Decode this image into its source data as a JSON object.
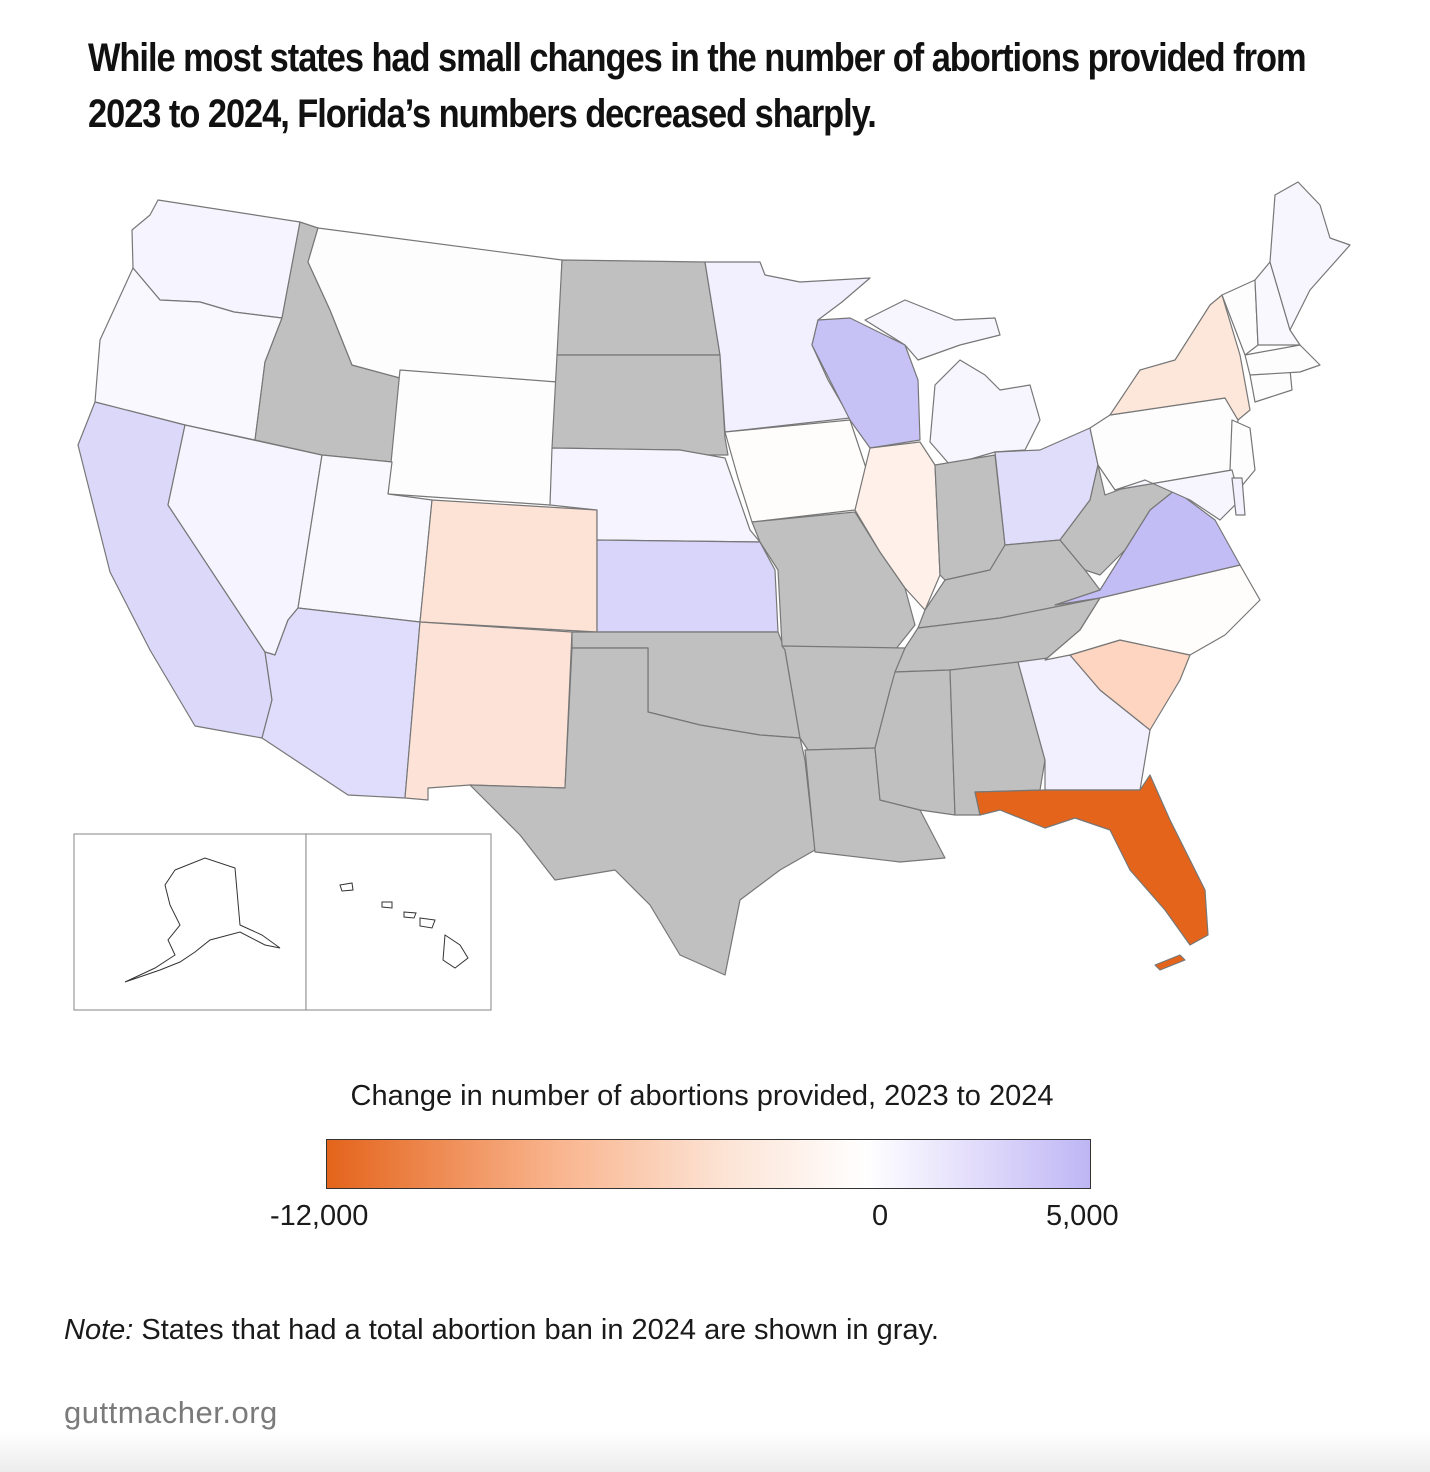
{
  "title": "While most states had small changes in the number of abortions provided from 2023 to 2024, Florida’s numbers decreased sharply.",
  "legend": {
    "title": "Change in number of abortions provided, 2023 to 2024",
    "min_label": "-12,000",
    "zero_label": "0",
    "max_label": "5,000",
    "min": -12000,
    "max": 5000,
    "colors": {
      "negative": "#e4641b",
      "zero": "#ffffff",
      "positive": "#beb6f4",
      "ban": "#c0c0c0"
    }
  },
  "note_prefix": "Note:",
  "note_text": " States that had a total abortion ban in 2024 are shown in gray.",
  "source": "guttmacher.org",
  "states": [
    {
      "name": "WA",
      "fill": "#f6f5ff"
    },
    {
      "name": "OR",
      "fill": "#f9f8ff"
    },
    {
      "name": "CA",
      "fill": "#dcd8fa"
    },
    {
      "name": "NV",
      "fill": "#f6f5ff"
    },
    {
      "name": "ID",
      "fill": "#c0c0c0"
    },
    {
      "name": "MT",
      "fill": "#fdfdfd"
    },
    {
      "name": "WY",
      "fill": "#fdfdfd"
    },
    {
      "name": "UT",
      "fill": "#f9f8ff"
    },
    {
      "name": "AZ",
      "fill": "#e0dcfb"
    },
    {
      "name": "CO",
      "fill": "#fde2d6"
    },
    {
      "name": "NM",
      "fill": "#fde3d7"
    },
    {
      "name": "ND",
      "fill": "#c0c0c0"
    },
    {
      "name": "SD",
      "fill": "#c0c0c0"
    },
    {
      "name": "NE",
      "fill": "#f6f5ff"
    },
    {
      "name": "KS",
      "fill": "#d8d4fa"
    },
    {
      "name": "OK",
      "fill": "#c0c0c0"
    },
    {
      "name": "TX",
      "fill": "#c0c0c0"
    },
    {
      "name": "MN",
      "fill": "#f2f0ff"
    },
    {
      "name": "IA",
      "fill": "#fffdfb"
    },
    {
      "name": "MO",
      "fill": "#c0c0c0"
    },
    {
      "name": "AR",
      "fill": "#c0c0c0"
    },
    {
      "name": "LA",
      "fill": "#c0c0c0"
    },
    {
      "name": "WI",
      "fill": "#c7c2f6"
    },
    {
      "name": "IL",
      "fill": "#fff1ea"
    },
    {
      "name": "MI",
      "fill": "#f7f6ff"
    },
    {
      "name": "IN",
      "fill": "#c0c0c0"
    },
    {
      "name": "OH",
      "fill": "#e0ddfb"
    },
    {
      "name": "KY",
      "fill": "#c0c0c0"
    },
    {
      "name": "TN",
      "fill": "#c0c0c0"
    },
    {
      "name": "MS",
      "fill": "#c0c0c0"
    },
    {
      "name": "AL",
      "fill": "#c0c0c0"
    },
    {
      "name": "GA",
      "fill": "#f2f0ff"
    },
    {
      "name": "FL",
      "fill": "#e4641b"
    },
    {
      "name": "SC",
      "fill": "#fdd5c0"
    },
    {
      "name": "NC",
      "fill": "#fffdfb"
    },
    {
      "name": "VA",
      "fill": "#c3bdf5"
    },
    {
      "name": "WV",
      "fill": "#c0c0c0"
    },
    {
      "name": "PA",
      "fill": "#fdfdfd"
    },
    {
      "name": "NY",
      "fill": "#fde6da"
    },
    {
      "name": "ME",
      "fill": "#f7f6ff"
    },
    {
      "name": "VT",
      "fill": "#fdfdfd"
    },
    {
      "name": "NH",
      "fill": "#f9f8ff"
    },
    {
      "name": "MA",
      "fill": "#fdfdfd"
    },
    {
      "name": "CT",
      "fill": "#fdfdfd"
    },
    {
      "name": "NJ",
      "fill": "#fdfdfd"
    },
    {
      "name": "MD",
      "fill": "#f7f6ff"
    },
    {
      "name": "DE",
      "fill": "#f4f2ff"
    },
    {
      "name": "AK",
      "fill": "#ffffff"
    },
    {
      "name": "HI",
      "fill": "#ffffff"
    }
  ]
}
